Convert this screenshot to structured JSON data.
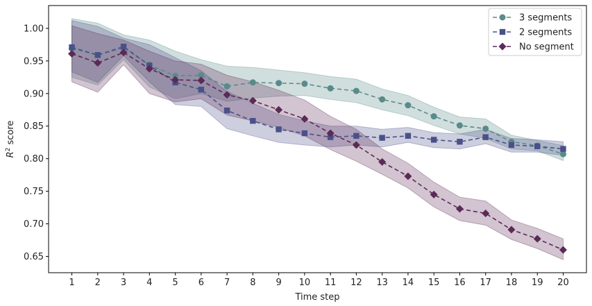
{
  "chart_data": {
    "type": "line",
    "xlabel": "Time step",
    "ylabel": "R² score",
    "ylabel_parts": {
      "base": "R",
      "sup": "2",
      "rest": " score"
    },
    "x": [
      1,
      2,
      3,
      4,
      5,
      6,
      7,
      8,
      9,
      10,
      11,
      12,
      13,
      14,
      15,
      16,
      17,
      18,
      19,
      20
    ],
    "xlim": [
      0.1,
      20.9
    ],
    "ylim": [
      0.625,
      1.035
    ],
    "yticks": [
      "0.65",
      "0.70",
      "0.75",
      "0.80",
      "0.85",
      "0.90",
      "0.95",
      "1.00"
    ],
    "xticks": [
      "1",
      "2",
      "3",
      "4",
      "5",
      "6",
      "7",
      "8",
      "9",
      "10",
      "11",
      "12",
      "13",
      "14",
      "15",
      "16",
      "17",
      "18",
      "19",
      "20"
    ],
    "grid": false,
    "legend_position": "top-right",
    "series": [
      {
        "name": "3 segments",
        "color": "#5a8a8a",
        "marker": "circle",
        "values": [
          0.969,
          0.959,
          0.97,
          0.944,
          0.927,
          0.928,
          0.911,
          0.917,
          0.916,
          0.915,
          0.908,
          0.904,
          0.891,
          0.882,
          0.865,
          0.851,
          0.846,
          0.826,
          0.82,
          0.807
        ],
        "upper": [
          1.015,
          1.008,
          0.99,
          0.982,
          0.965,
          0.952,
          0.942,
          0.94,
          0.936,
          0.932,
          0.926,
          0.922,
          0.907,
          0.897,
          0.879,
          0.864,
          0.861,
          0.836,
          0.828,
          0.82
        ],
        "lower": [
          0.925,
          0.913,
          0.952,
          0.91,
          0.892,
          0.9,
          0.888,
          0.893,
          0.896,
          0.897,
          0.891,
          0.886,
          0.875,
          0.866,
          0.851,
          0.838,
          0.831,
          0.815,
          0.812,
          0.797
        ]
      },
      {
        "name": "2 segments",
        "color": "#4a5089",
        "marker": "square",
        "values": [
          0.971,
          0.959,
          0.972,
          0.943,
          0.917,
          0.906,
          0.874,
          0.858,
          0.845,
          0.839,
          0.833,
          0.835,
          0.832,
          0.835,
          0.829,
          0.826,
          0.833,
          0.821,
          0.819,
          0.815
        ],
        "upper": [
          1.012,
          1.003,
          0.985,
          0.975,
          0.955,
          0.935,
          0.903,
          0.885,
          0.868,
          0.858,
          0.85,
          0.85,
          0.845,
          0.848,
          0.84,
          0.838,
          0.845,
          0.831,
          0.829,
          0.826
        ],
        "lower": [
          0.933,
          0.917,
          0.958,
          0.918,
          0.883,
          0.88,
          0.846,
          0.835,
          0.825,
          0.821,
          0.818,
          0.821,
          0.818,
          0.825,
          0.817,
          0.815,
          0.823,
          0.81,
          0.81,
          0.805
        ]
      },
      {
        "name": "No segment",
        "color": "#5c2a56",
        "marker": "diamond",
        "values": [
          0.961,
          0.947,
          0.963,
          0.938,
          0.921,
          0.92,
          0.898,
          0.889,
          0.875,
          0.861,
          0.839,
          0.821,
          0.795,
          0.773,
          0.745,
          0.723,
          0.716,
          0.691,
          0.677,
          0.66
        ],
        "upper": [
          1.004,
          0.992,
          0.982,
          0.965,
          0.95,
          0.945,
          0.928,
          0.918,
          0.905,
          0.89,
          0.865,
          0.845,
          0.815,
          0.793,
          0.764,
          0.741,
          0.735,
          0.706,
          0.693,
          0.677
        ],
        "lower": [
          0.918,
          0.902,
          0.944,
          0.9,
          0.887,
          0.892,
          0.867,
          0.858,
          0.848,
          0.835,
          0.814,
          0.796,
          0.776,
          0.755,
          0.726,
          0.705,
          0.698,
          0.676,
          0.662,
          0.645
        ]
      }
    ]
  }
}
